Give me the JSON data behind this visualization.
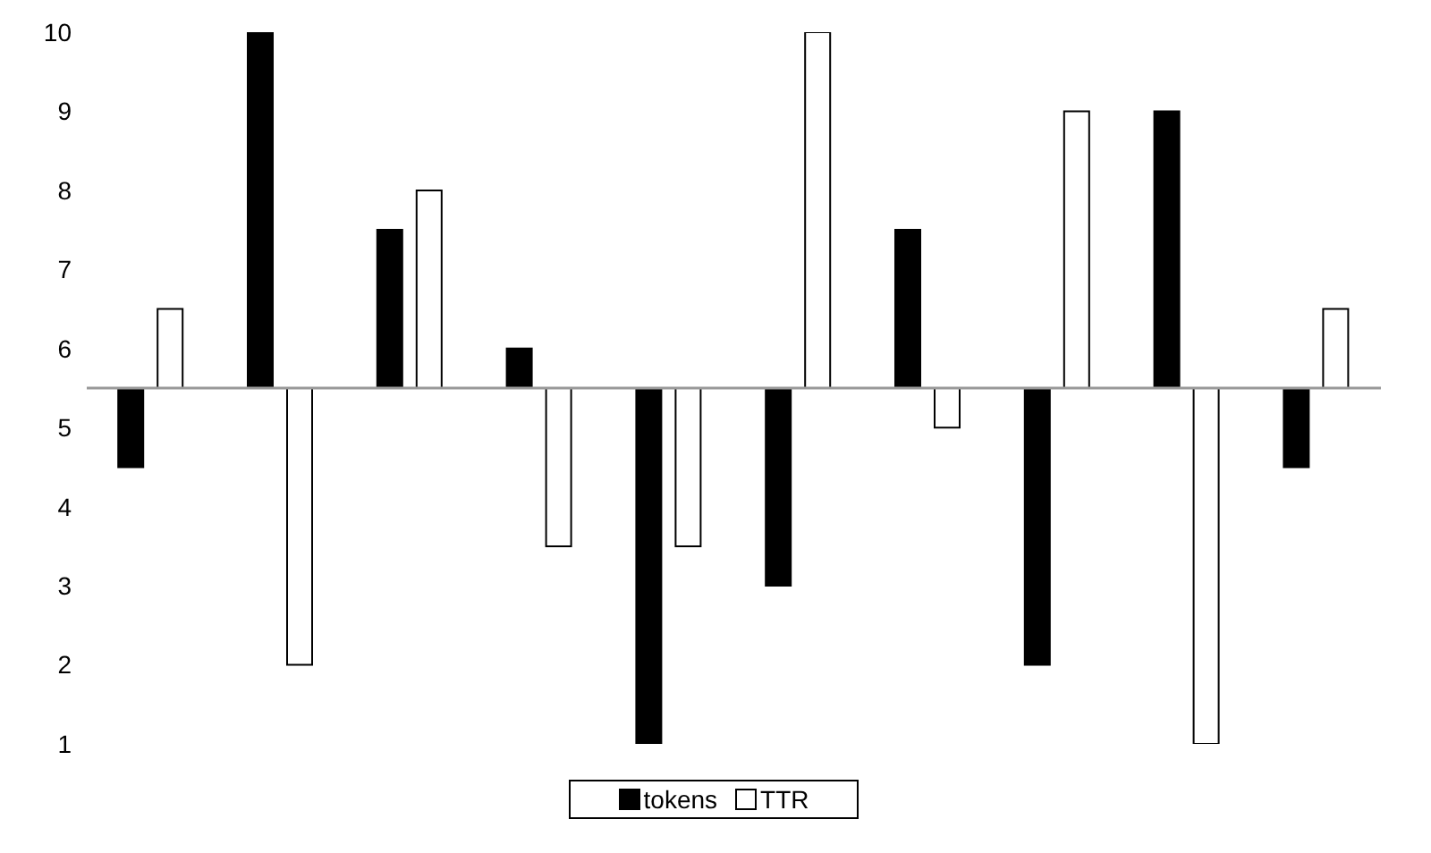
{
  "chart_data": {
    "type": "bar",
    "categories": [
      null,
      null,
      null,
      null,
      null,
      null,
      null,
      null,
      null,
      null
    ],
    "series": [
      {
        "name": "tokens",
        "color": "#000000",
        "values": [
          -1,
          4.5,
          2,
          0.5,
          -4.5,
          -2.5,
          2,
          -3.5,
          3.5,
          -1
        ],
        "base": [
          5.5,
          5.5,
          5.5,
          5.5,
          5.5,
          5.5,
          5.5,
          5.5,
          5.5,
          5.5
        ]
      },
      {
        "name": "TTR",
        "color": "#ffffff",
        "values": [
          1,
          -3.5,
          2.5,
          -2,
          -2,
          4.5,
          -0.5,
          3.5,
          -4.5,
          1
        ],
        "base": [
          5.5,
          5.5,
          5.5,
          5.5,
          5.5,
          5.5,
          5.5,
          5.5,
          5.5,
          5.5
        ]
      }
    ],
    "ylim": [
      1,
      10
    ],
    "yticks": [
      1,
      2,
      3,
      4,
      5,
      6,
      7,
      8,
      9,
      10
    ],
    "ref_lines": [
      {
        "axis": "y",
        "value": 5.5,
        "color": "#999999"
      }
    ],
    "grid": false,
    "legend": "bottom"
  }
}
